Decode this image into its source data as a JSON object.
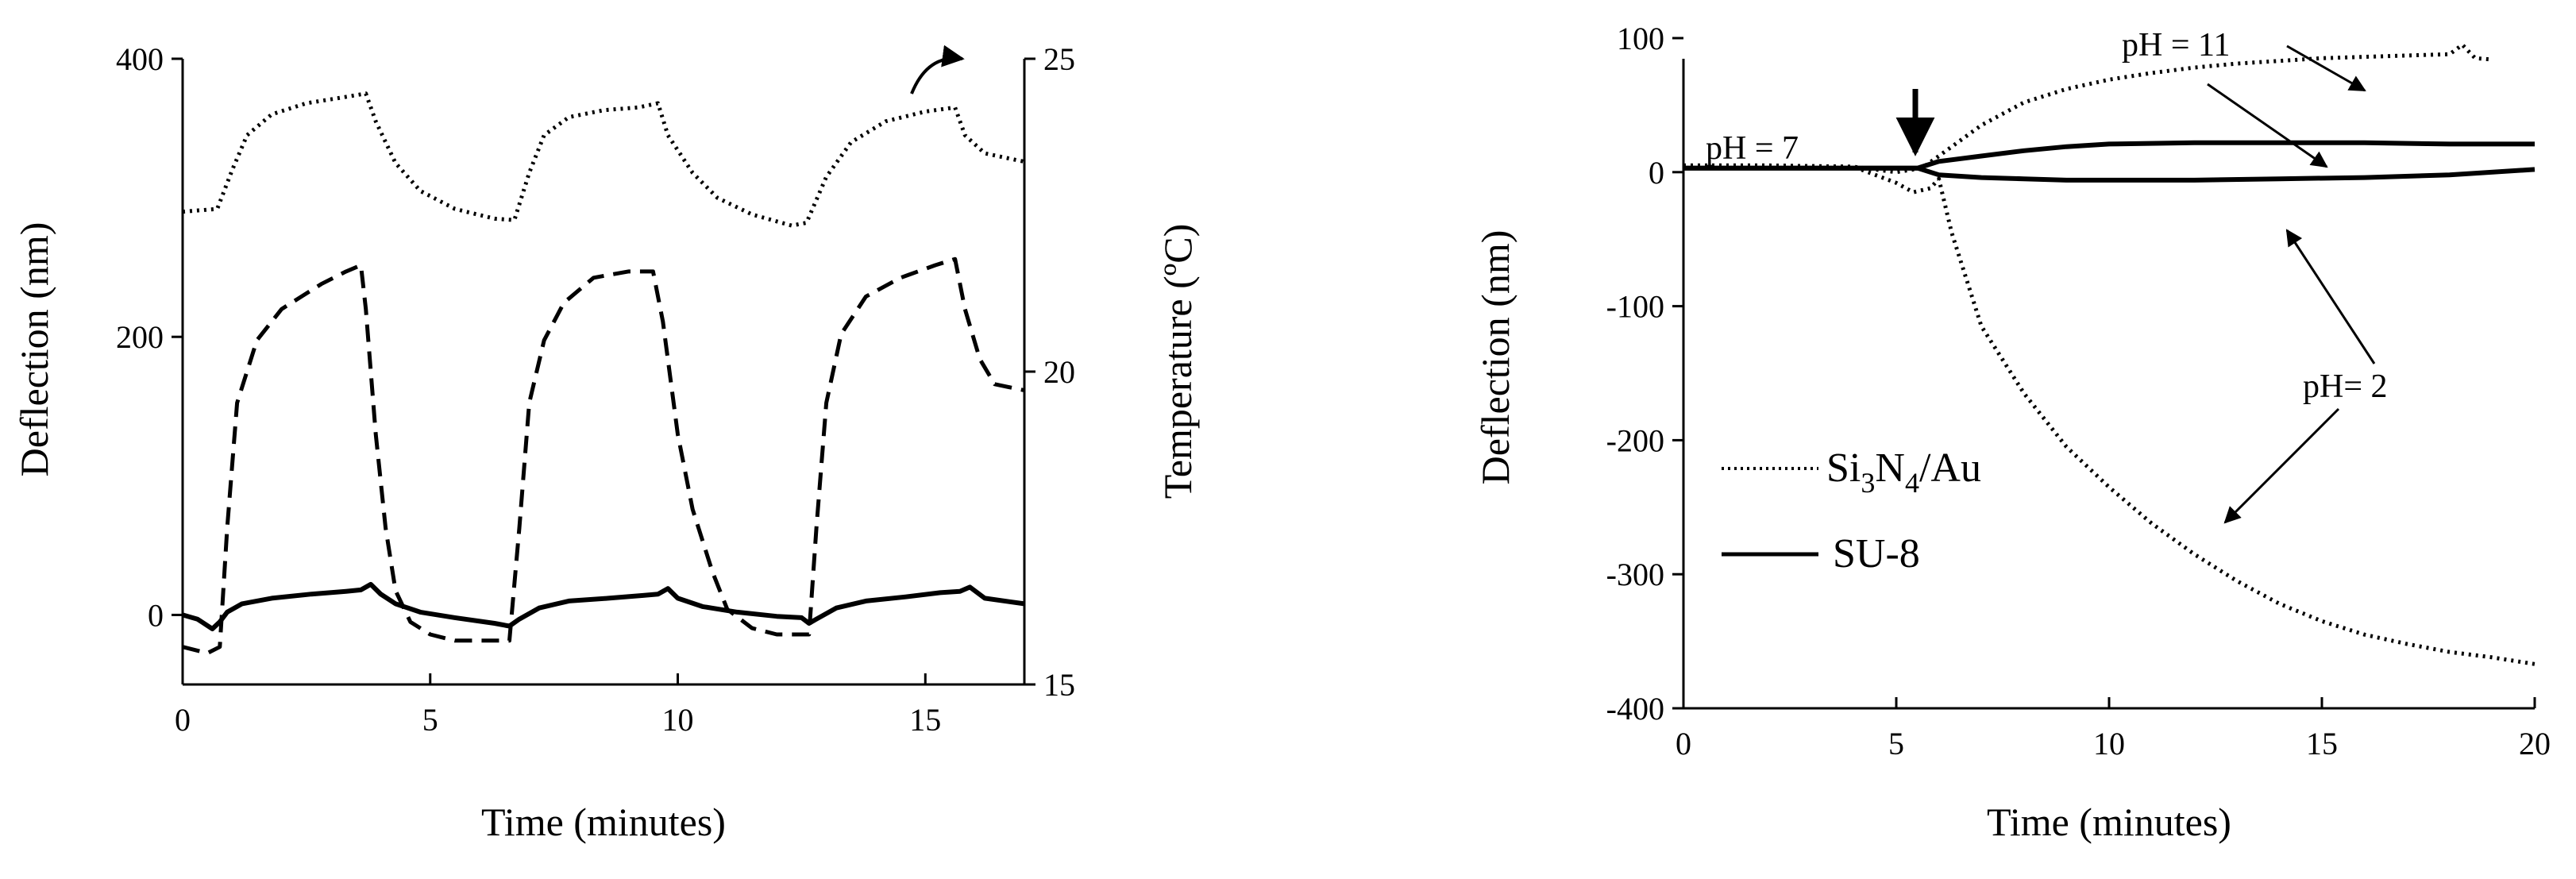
{
  "chart_data": [
    {
      "type": "line",
      "title": "",
      "xlabel": "Time (minutes)",
      "ylabel": "Deflection (nm)",
      "y2label": "Temperature (ºC)",
      "xlim": [
        0,
        17
      ],
      "ylim": [
        -50,
        400
      ],
      "y2lim": [
        15,
        25
      ],
      "xticks": [
        0,
        5,
        10,
        15
      ],
      "yticks": [
        0,
        200,
        400
      ],
      "y2ticks": [
        15,
        20,
        25
      ],
      "grid": false,
      "series": [
        {
          "style": "dotted",
          "axis": "y",
          "x": [
            0,
            0.7,
            1.0,
            1.3,
            1.8,
            2.5,
            3.2,
            3.7,
            3.9,
            4.3,
            4.8,
            5.5,
            6.3,
            6.7,
            7.0,
            7.3,
            7.8,
            8.5,
            9.2,
            9.6,
            9.8,
            10.3,
            10.8,
            11.5,
            12.3,
            12.6,
            13.0,
            13.5,
            14.2,
            15.0,
            15.6,
            15.8,
            16.2,
            17.0
          ],
          "y": [
            290,
            292,
            320,
            345,
            360,
            368,
            372,
            375,
            355,
            325,
            305,
            292,
            285,
            284,
            318,
            345,
            358,
            363,
            365,
            368,
            345,
            318,
            300,
            288,
            280,
            282,
            315,
            340,
            355,
            362,
            365,
            345,
            332,
            326
          ]
        },
        {
          "style": "dashed",
          "axis": "y2",
          "x": [
            0,
            0.5,
            0.75,
            0.9,
            1.1,
            1.5,
            2.0,
            2.8,
            3.3,
            3.6,
            3.7,
            3.9,
            4.1,
            4.3,
            4.6,
            5.0,
            5.5,
            6.2,
            6.6,
            6.8,
            7.0,
            7.3,
            7.7,
            8.3,
            9.0,
            9.5,
            9.7,
            10.0,
            10.3,
            10.7,
            11.0,
            11.5,
            12.0,
            12.5,
            12.65,
            12.8,
            13.0,
            13.3,
            13.8,
            14.5,
            15.2,
            15.6,
            15.8,
            16.1,
            16.4,
            17.0
          ],
          "y": [
            15.6,
            15.5,
            15.6,
            17.5,
            19.5,
            20.5,
            21.0,
            21.4,
            21.6,
            21.7,
            21.0,
            19.0,
            17.5,
            16.5,
            16.0,
            15.8,
            15.7,
            15.7,
            15.7,
            17.5,
            19.5,
            20.5,
            21.1,
            21.5,
            21.6,
            21.6,
            20.8,
            19.0,
            17.8,
            16.8,
            16.2,
            15.9,
            15.8,
            15.8,
            15.8,
            17.5,
            19.5,
            20.6,
            21.2,
            21.5,
            21.7,
            21.8,
            21.0,
            20.2,
            19.8,
            19.7
          ]
        },
        {
          "style": "solid",
          "axis": "y",
          "x": [
            0,
            0.3,
            0.6,
            0.75,
            0.9,
            1.2,
            1.8,
            2.6,
            3.3,
            3.6,
            3.8,
            4.0,
            4.3,
            4.8,
            5.5,
            6.3,
            6.6,
            6.8,
            7.2,
            7.8,
            8.6,
            9.3,
            9.6,
            9.8,
            10.0,
            10.5,
            11.2,
            12.0,
            12.5,
            12.65,
            12.8,
            13.2,
            13.8,
            14.6,
            15.3,
            15.7,
            15.9,
            16.2,
            17.0
          ],
          "y": [
            0,
            -3,
            -10,
            -5,
            2,
            8,
            12,
            15,
            17,
            18,
            22,
            15,
            8,
            2,
            -2,
            -6,
            -8,
            -3,
            5,
            10,
            12,
            14,
            15,
            19,
            12,
            6,
            2,
            -1,
            -2,
            -6,
            -3,
            5,
            10,
            13,
            16,
            17,
            20,
            12,
            8
          ]
        }
      ],
      "annotations": []
    },
    {
      "type": "line",
      "title": "",
      "xlabel": "Time (minutes)",
      "ylabel": "Deflection (nm)",
      "xlim": [
        0,
        20
      ],
      "ylim": [
        -400,
        100
      ],
      "xticks": [
        0,
        5,
        10,
        15,
        20
      ],
      "yticks": [
        -400,
        -300,
        -200,
        -100,
        0,
        100
      ],
      "grid": false,
      "legend": {
        "position": "center-left",
        "entries": [
          {
            "label_main": "Si",
            "sub1": "3",
            "mid": "N",
            "sub2": "4",
            "tail": "/Au",
            "style": "dotted"
          },
          {
            "label_main": "SU-8",
            "style": "solid"
          }
        ]
      },
      "series": [
        {
          "name": "Si3N4/Au",
          "style": "dotted",
          "x": [
            0,
            2,
            4,
            5.0,
            5.6,
            6.0,
            7,
            8,
            9,
            10,
            11,
            12,
            13,
            14,
            15,
            16,
            17,
            18,
            18.3,
            18.6,
            19
          ],
          "y": [
            5,
            5,
            4,
            0,
            3,
            12,
            35,
            52,
            62,
            69,
            74,
            78,
            81,
            83,
            85,
            86,
            87,
            88,
            95,
            85,
            84
          ]
        },
        {
          "name": "Si3N4/Au",
          "style": "dotted",
          "x": [
            0,
            2,
            4,
            5.0,
            5.4,
            5.8,
            6.0,
            6.3,
            7,
            8,
            9,
            10,
            11,
            12,
            13,
            14,
            15,
            16,
            17,
            18,
            19,
            20
          ],
          "y": [
            5,
            5,
            4,
            -8,
            -15,
            -12,
            -5,
            -45,
            -115,
            -165,
            -205,
            -235,
            -262,
            -285,
            -305,
            -322,
            -335,
            -345,
            -352,
            -358,
            -362,
            -367
          ]
        },
        {
          "name": "SU-8",
          "style": "solid",
          "x": [
            0,
            2,
            4,
            5.5,
            6,
            7,
            8,
            9,
            10,
            12,
            14,
            16,
            18,
            20
          ],
          "y": [
            3,
            3,
            3,
            3,
            8,
            12,
            16,
            19,
            21,
            22,
            22,
            22,
            21,
            21
          ]
        },
        {
          "name": "SU-8",
          "style": "solid",
          "x": [
            0,
            2,
            4,
            5.5,
            6,
            7,
            8,
            9,
            10,
            12,
            14,
            16,
            18,
            20
          ],
          "y": [
            3,
            3,
            3,
            3,
            -2,
            -4,
            -5,
            -6,
            -6,
            -6,
            -5,
            -4,
            -2,
            2
          ]
        }
      ],
      "annotations": [
        {
          "text": "pH = 7"
        },
        {
          "text": "pH = 11"
        },
        {
          "text": "pH= 2"
        }
      ]
    }
  ]
}
